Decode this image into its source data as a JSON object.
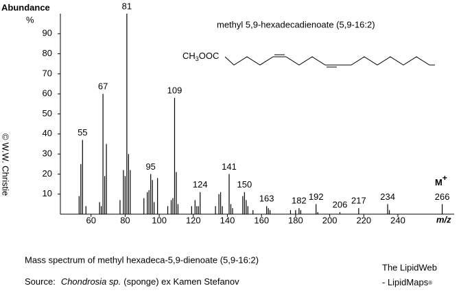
{
  "chart_data": {
    "type": "bar",
    "y_label": "Abundance",
    "y_unit": "%",
    "x_label": "m/z",
    "compound_name": "methyl 5,9-hexadecadienoate (5,9-16:2)",
    "structure_head": "CH",
    "structure_sub": "3",
    "structure_tail": "OOC",
    "molecular_ion": "M",
    "molecular_ion_charge": "+",
    "copyright": "© W.W. Christie",
    "caption": "Mass spectrum of methyl hexadeca-5,9-dienoate  (5,9-16:2)",
    "source_prefix": "Source:",
    "source_species": "Chondrosia sp.",
    "source_rest": "(sponge) ex Kamen Stefanov",
    "site_name": "The LipidWeb",
    "site_sub": "- LipidMaps",
    "site_mark": "®",
    "color": "#000000",
    "title_color": "#1a1aff",
    "xlim": [
      42,
      273
    ],
    "ylim": [
      0,
      100
    ],
    "xticks": [
      60,
      80,
      100,
      120,
      140,
      160,
      180,
      200,
      220,
      240
    ],
    "yticks": [
      10,
      20,
      30,
      40,
      50,
      60,
      70,
      80,
      90
    ],
    "x": [
      53,
      54,
      55,
      57,
      65,
      66,
      67,
      68,
      69,
      77,
      79,
      80,
      81,
      82,
      83,
      91,
      93,
      94,
      95,
      96,
      97,
      99,
      105,
      107,
      108,
      109,
      110,
      111,
      119,
      121,
      122,
      123,
      124,
      133,
      135,
      136,
      137,
      141,
      142,
      143,
      149,
      150,
      151,
      152,
      155,
      163,
      164,
      165,
      177,
      180,
      182,
      183,
      192,
      193,
      206,
      217,
      234,
      235,
      266
    ],
    "values": [
      9,
      25,
      37,
      4,
      6,
      4,
      60,
      19,
      35,
      7,
      22,
      19,
      100,
      30,
      22,
      8,
      11,
      12,
      20,
      17,
      6,
      18,
      4,
      7,
      8,
      58,
      21,
      5,
      4,
      7,
      4,
      4,
      11,
      4,
      10,
      11,
      4,
      20,
      5,
      3,
      9,
      11,
      7,
      4,
      2,
      4,
      3,
      2,
      2,
      2,
      3,
      2,
      5,
      1,
      1,
      3,
      5,
      2,
      5
    ],
    "labeled_peaks": [
      55,
      67,
      81,
      95,
      109,
      124,
      141,
      150,
      163,
      182,
      192,
      206,
      217,
      234,
      266
    ]
  }
}
